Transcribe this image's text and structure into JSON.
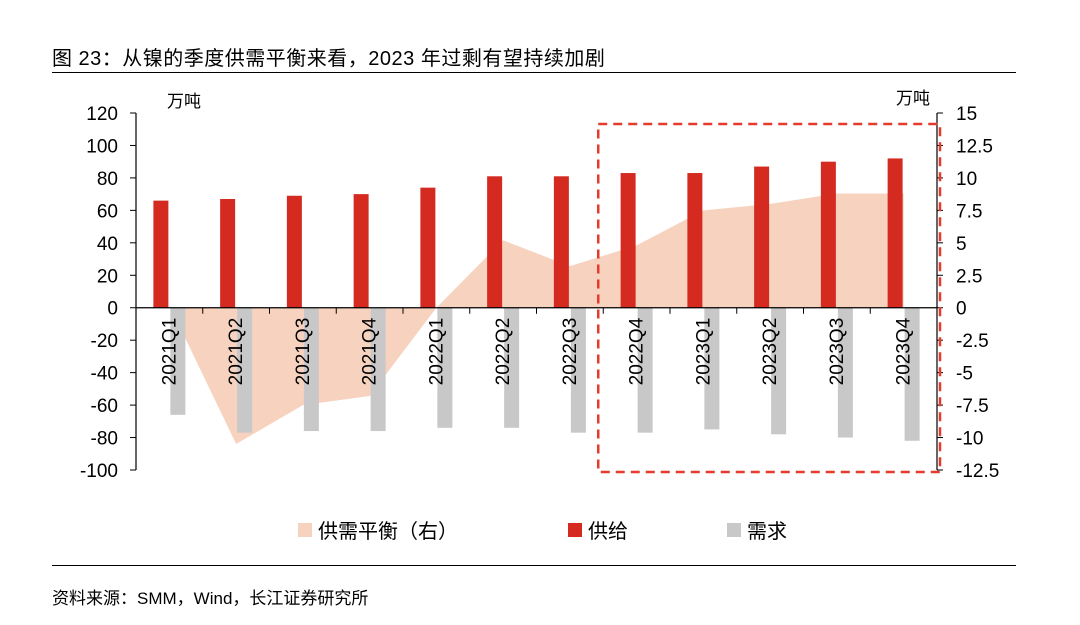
{
  "title": "图 23：从镍的季度供需平衡来看，2023 年过剩有望持续加剧",
  "source": "资料来源：SMM，Wind，长江证券研究所",
  "colors": {
    "supply": "#d42a20",
    "demand": "#c8c8c8",
    "balance": "#f7d3bf",
    "highlight": "#e53a2c"
  },
  "chart_data": {
    "type": "bar",
    "categories": [
      "2021Q1",
      "2021Q2",
      "2021Q3",
      "2021Q4",
      "2022Q1",
      "2022Q2",
      "2022Q3",
      "2022Q4",
      "2023Q1",
      "2023Q2",
      "2023Q3",
      "2023Q4"
    ],
    "series": [
      {
        "name": "供需平衡（右）",
        "type": "area",
        "axis": "right",
        "values": [
          0.2,
          -10.5,
          -7.5,
          -6.8,
          0.0,
          5.2,
          3.2,
          4.8,
          7.5,
          8.0,
          8.8,
          8.8
        ]
      },
      {
        "name": "供给",
        "type": "bar",
        "axis": "left",
        "values": [
          66,
          67,
          69,
          70,
          74,
          81,
          81,
          83,
          83,
          87,
          90,
          92
        ]
      },
      {
        "name": "需求",
        "type": "bar",
        "axis": "left",
        "values": [
          -66,
          -77,
          -76,
          -76,
          -74,
          -74,
          -77,
          -77,
          -75,
          -78,
          -80,
          -82
        ]
      }
    ],
    "left_axis": {
      "unit": "万吨",
      "ylim": [
        -100,
        120
      ],
      "ticks": [
        "120",
        "100",
        "80",
        "60",
        "40",
        "20",
        "0",
        "-20",
        "-40",
        "-60",
        "-80",
        "-100"
      ]
    },
    "right_axis": {
      "unit": "万吨",
      "ylim": [
        -12.5,
        15
      ],
      "ticks": [
        "15",
        "12.5",
        "10",
        "7.5",
        "5",
        "2.5",
        "0",
        "-2.5",
        "-5",
        "-7.5",
        "-10",
        "-12.5"
      ]
    },
    "highlight": {
      "from": "2022Q4",
      "to": "2023Q4",
      "style": "dashed box"
    },
    "legend": [
      {
        "label": "供需平衡（右）",
        "key": "balance"
      },
      {
        "label": "供给",
        "key": "supply"
      },
      {
        "label": "需求",
        "key": "demand"
      }
    ]
  }
}
